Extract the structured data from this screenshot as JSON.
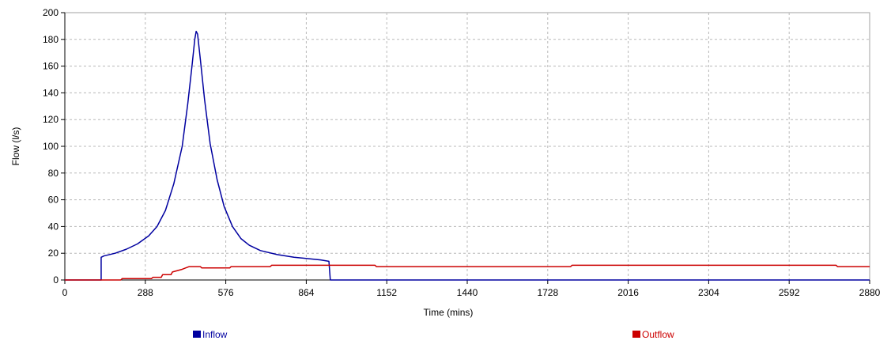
{
  "chart_data": {
    "type": "line",
    "title": "",
    "xlabel": "Time (mins)",
    "ylabel": "Flow (l/s)",
    "xlim": [
      0,
      2880
    ],
    "ylim": [
      0,
      200
    ],
    "xticks": [
      0,
      288,
      576,
      864,
      1152,
      1440,
      1728,
      2016,
      2304,
      2592,
      2880
    ],
    "yticks": [
      0,
      20,
      40,
      60,
      80,
      100,
      120,
      140,
      160,
      180,
      200
    ],
    "grid": true,
    "legend_position": "bottom",
    "series": [
      {
        "name": "Inflow",
        "color": "#0000a0",
        "points": [
          [
            0,
            0
          ],
          [
            130,
            0
          ],
          [
            130,
            17
          ],
          [
            140,
            18
          ],
          [
            180,
            20
          ],
          [
            220,
            23
          ],
          [
            260,
            27
          ],
          [
            300,
            33
          ],
          [
            330,
            40
          ],
          [
            360,
            52
          ],
          [
            390,
            72
          ],
          [
            420,
            100
          ],
          [
            440,
            132
          ],
          [
            455,
            160
          ],
          [
            465,
            180
          ],
          [
            470,
            186
          ],
          [
            475,
            184
          ],
          [
            485,
            165
          ],
          [
            500,
            135
          ],
          [
            520,
            102
          ],
          [
            545,
            75
          ],
          [
            570,
            55
          ],
          [
            600,
            40
          ],
          [
            630,
            31
          ],
          [
            660,
            26
          ],
          [
            700,
            22
          ],
          [
            760,
            19
          ],
          [
            820,
            17
          ],
          [
            870,
            16
          ],
          [
            915,
            15
          ],
          [
            945,
            14
          ],
          [
            950,
            0
          ],
          [
            2880,
            0
          ]
        ]
      },
      {
        "name": "Outflow",
        "color": "#cc0000",
        "points": [
          [
            0,
            0
          ],
          [
            200,
            0
          ],
          [
            205,
            1
          ],
          [
            310,
            1
          ],
          [
            315,
            2
          ],
          [
            345,
            2
          ],
          [
            350,
            4
          ],
          [
            380,
            4
          ],
          [
            385,
            6
          ],
          [
            420,
            8
          ],
          [
            445,
            10
          ],
          [
            485,
            10
          ],
          [
            490,
            9
          ],
          [
            590,
            9
          ],
          [
            595,
            10
          ],
          [
            735,
            10
          ],
          [
            740,
            11
          ],
          [
            1110,
            11
          ],
          [
            1115,
            10
          ],
          [
            1810,
            10
          ],
          [
            1815,
            11
          ],
          [
            2760,
            11
          ],
          [
            2765,
            10
          ],
          [
            2880,
            10
          ]
        ]
      }
    ]
  }
}
